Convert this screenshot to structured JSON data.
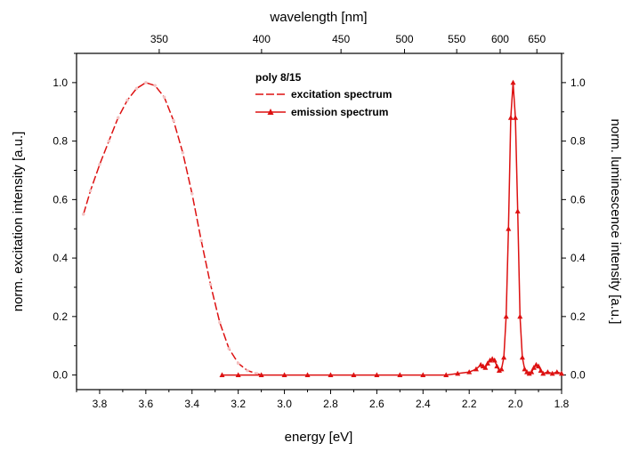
{
  "chart_data": {
    "type": "line",
    "title": "",
    "xlabel": "energy [eV]",
    "xlabel_top": "wavelength [nm]",
    "ylabel_left": "norm. excitation intensity [a.u.]",
    "ylabel_right": "norm. luminescence intensity [a.u.]",
    "xlim": [
      3.9,
      1.8
    ],
    "x_reversed": true,
    "ylim": [
      -0.05,
      1.1
    ],
    "x_ticks": [
      "3.8",
      "3.6",
      "3.4",
      "3.2",
      "3.0",
      "2.8",
      "2.6",
      "2.4",
      "2.2",
      "2.0",
      "1.8"
    ],
    "y_ticks": [
      "0.0",
      "0.2",
      "0.4",
      "0.6",
      "0.8",
      "1.0"
    ],
    "top_ticks": [
      {
        "label": "350",
        "energy": 3.542
      },
      {
        "label": "400",
        "energy": 3.099
      },
      {
        "label": "450",
        "energy": 2.755
      },
      {
        "label": "500",
        "energy": 2.48
      },
      {
        "label": "550",
        "energy": 2.254
      },
      {
        "label": "600",
        "energy": 2.066
      },
      {
        "label": "650",
        "energy": 1.907
      }
    ],
    "legend_title": "poly 8/15",
    "legend_position": "top-center",
    "colors": {
      "series": "#dd1111",
      "axis": "#000000"
    },
    "series": [
      {
        "name": "excitation spectrum",
        "style": "dashed",
        "x": [
          3.87,
          3.84,
          3.8,
          3.76,
          3.72,
          3.68,
          3.64,
          3.6,
          3.56,
          3.52,
          3.48,
          3.44,
          3.4,
          3.36,
          3.32,
          3.28,
          3.24,
          3.2,
          3.16,
          3.12,
          3.1
        ],
        "y": [
          0.55,
          0.63,
          0.72,
          0.8,
          0.88,
          0.94,
          0.98,
          1.0,
          0.99,
          0.95,
          0.87,
          0.76,
          0.62,
          0.46,
          0.31,
          0.18,
          0.09,
          0.04,
          0.015,
          0.005,
          0.0
        ]
      },
      {
        "name": "emission spectrum",
        "style": "solid-triangle",
        "x": [
          3.27,
          3.2,
          3.1,
          3.0,
          2.9,
          2.8,
          2.7,
          2.6,
          2.5,
          2.4,
          2.3,
          2.25,
          2.2,
          2.17,
          2.15,
          2.14,
          2.13,
          2.12,
          2.11,
          2.1,
          2.09,
          2.08,
          2.07,
          2.06,
          2.05,
          2.04,
          2.03,
          2.02,
          2.01,
          2.0,
          1.99,
          1.98,
          1.97,
          1.96,
          1.95,
          1.94,
          1.93,
          1.92,
          1.91,
          1.9,
          1.89,
          1.88,
          1.86,
          1.84,
          1.82,
          1.8
        ],
        "y": [
          0.0,
          0.0,
          0.0,
          0.0,
          0.0,
          0.0,
          0.0,
          0.0,
          0.0,
          0.0,
          0.0,
          0.005,
          0.01,
          0.02,
          0.035,
          0.03,
          0.025,
          0.04,
          0.05,
          0.055,
          0.05,
          0.03,
          0.015,
          0.02,
          0.06,
          0.2,
          0.5,
          0.88,
          1.0,
          0.88,
          0.56,
          0.2,
          0.06,
          0.02,
          0.01,
          0.005,
          0.01,
          0.025,
          0.035,
          0.03,
          0.015,
          0.005,
          0.01,
          0.005,
          0.01,
          0.005
        ]
      }
    ]
  }
}
